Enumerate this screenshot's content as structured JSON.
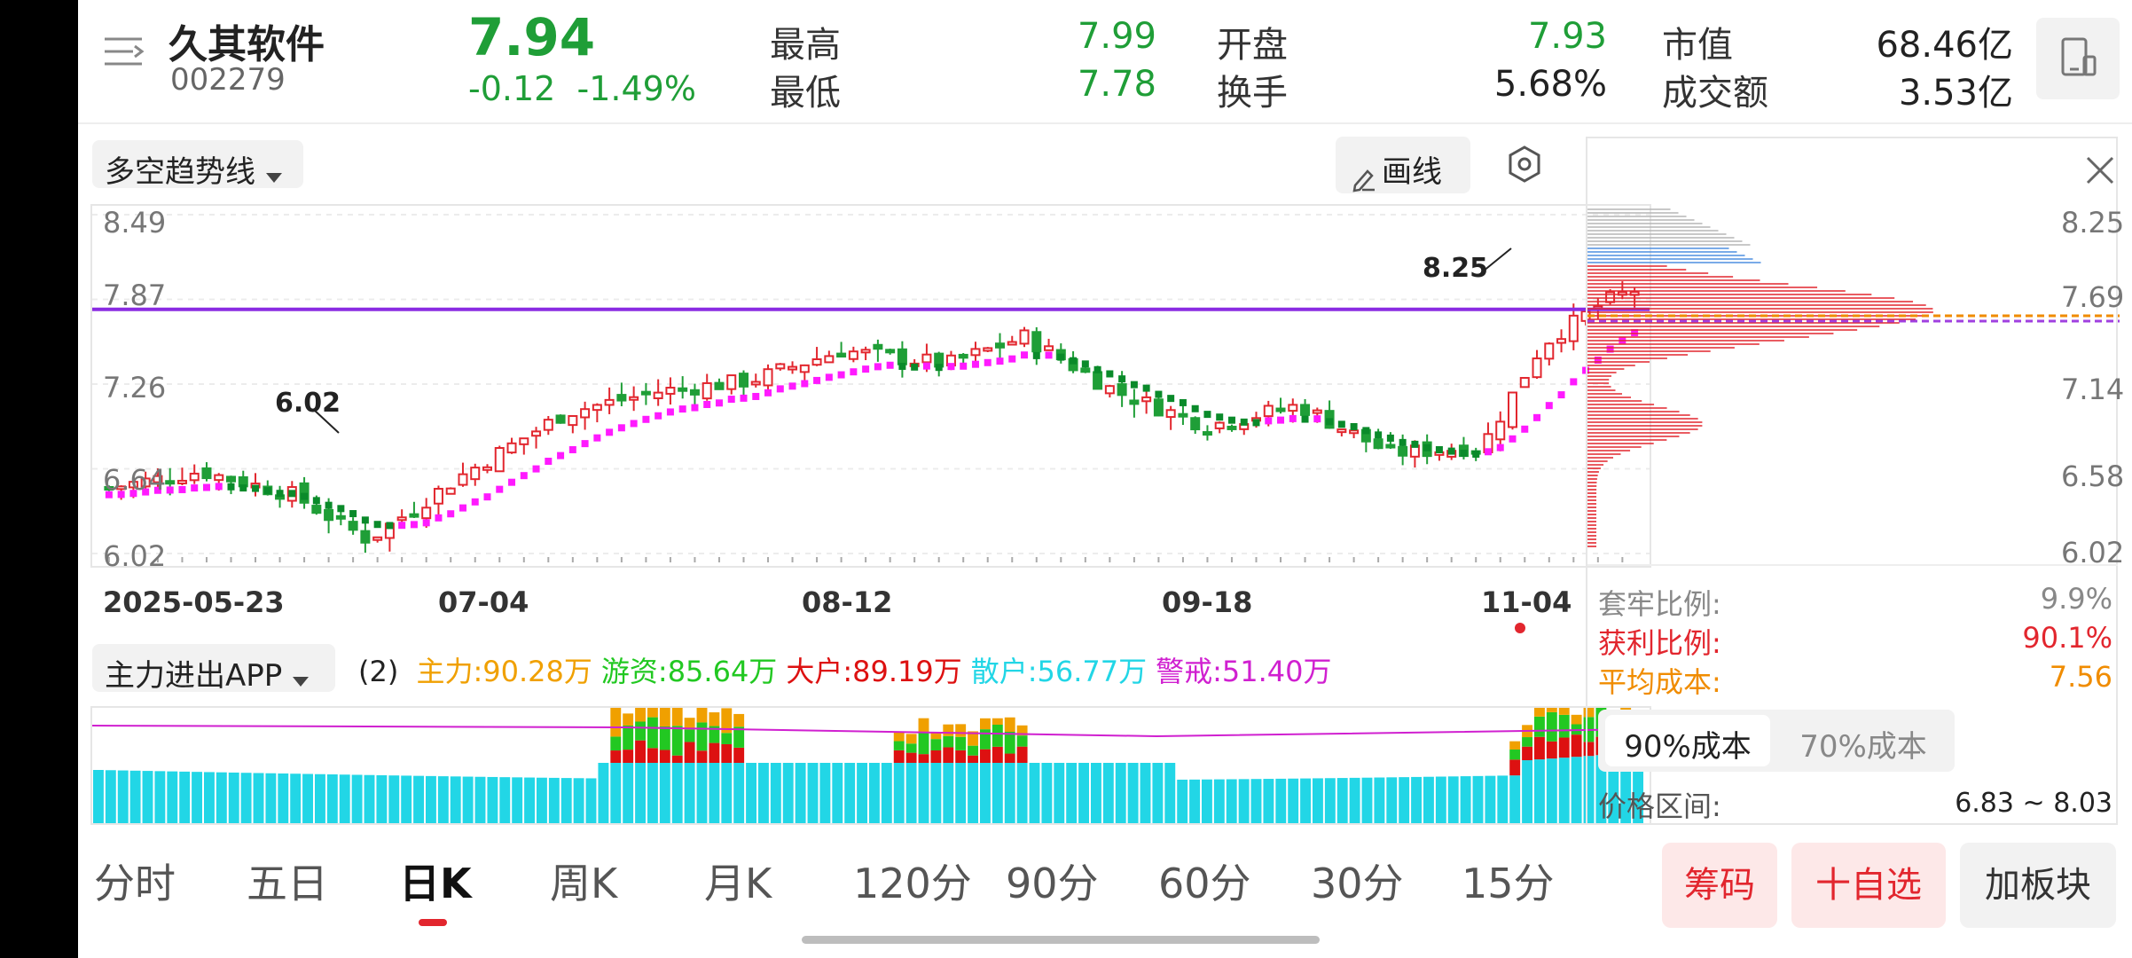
{
  "header": {
    "stock_name": "久其软件",
    "stock_code": "002279",
    "price": "7.94",
    "change": "-0.12",
    "change_pct": "-1.49%",
    "stats": [
      {
        "label": "最高",
        "value": "7.99",
        "color": "#1f9e37"
      },
      {
        "label": "最低",
        "value": "7.78",
        "color": "#1f9e37"
      },
      {
        "label": "开盘",
        "value": "7.93",
        "color": "#1f9e37"
      },
      {
        "label": "换手",
        "value": "5.68%",
        "color": "#222222"
      },
      {
        "label": "市值",
        "value": "68.46亿",
        "color": "#222222"
      },
      {
        "label": "成交额",
        "value": "3.53亿",
        "color": "#222222"
      }
    ]
  },
  "indicator_selector": "多空趋势线",
  "draw_button": "画线",
  "main_chart": {
    "y_ticks": [
      "8.49",
      "7.87",
      "7.26",
      "6.64",
      "6.02"
    ],
    "x_dates": [
      "2025-05-23",
      "07-04",
      "08-12",
      "09-18",
      "11-04"
    ],
    "annot_high": "8.25",
    "annot_low": "6.02",
    "hline_price": 7.8
  },
  "sub_chart": {
    "selector": "主力进出APP",
    "param": "(2)",
    "legend": [
      {
        "label": "主力:90.28万",
        "color": "#f0a000"
      },
      {
        "label": "游资:85.64万",
        "color": "#22c822"
      },
      {
        "label": "大户:89.19万",
        "color": "#dd1111"
      },
      {
        "label": "散户:56.77万",
        "color": "#22d6e6"
      },
      {
        "label": "警戒:51.40万",
        "color": "#d020d0"
      }
    ]
  },
  "chip_panel": {
    "y_ticks": [
      "8.25",
      "7.69",
      "7.14",
      "6.58",
      "6.02"
    ],
    "trapped_label": "套牢比例:",
    "trapped_value": "9.9%",
    "profit_label": "获利比例:",
    "profit_value": "90.1%",
    "avg_cost_label": "平均成本:",
    "avg_cost_value": "7.56",
    "cost_tabs": [
      "90%成本",
      "70%成本"
    ],
    "range_label": "价格区间:",
    "range_value": "6.83 ~ 8.03"
  },
  "period_tabs": [
    "分时",
    "五日",
    "日K",
    "周K",
    "月K",
    "120分",
    "90分",
    "60分",
    "30分",
    "15分"
  ],
  "active_tab": "日K",
  "actions": {
    "chips": "筹码",
    "add_watch": "十自选",
    "add_sector": "加板块"
  },
  "colors": {
    "up": "#e2262e",
    "down": "#1f9e37",
    "trend_up": "#ff1aff",
    "trend_down": "#0a8a2a",
    "hline": "#8a2be2",
    "accent": "#e2262e"
  }
}
